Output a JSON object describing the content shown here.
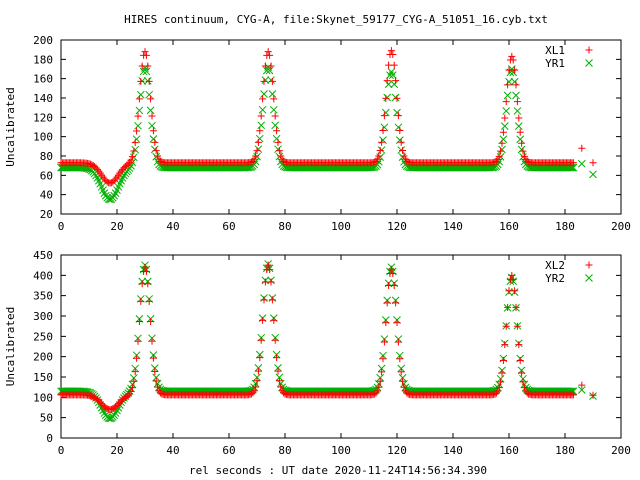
{
  "title": "HIRES continuum, CYG-A, file:Skynet_59177_CYG-A_51051_16.cyb.txt",
  "xlabel": "rel seconds : UT date 2020-11-24T14:56:34.390",
  "colors": {
    "red": "#ff0000",
    "green": "#00b000",
    "axis": "#000000"
  },
  "chart_data": [
    {
      "type": "scatter",
      "ylabel": "Uncalibrated",
      "xlim": [
        0,
        200
      ],
      "ylim": [
        20,
        200
      ],
      "xticks": [
        0,
        20,
        40,
        60,
        80,
        100,
        120,
        140,
        160,
        180,
        200
      ],
      "yticks": [
        20,
        40,
        60,
        80,
        100,
        120,
        140,
        160,
        180,
        200
      ],
      "legend_position": "top-right",
      "series": [
        {
          "name": "XL1",
          "marker": "plus",
          "color": "#ff0000",
          "baseline": 73,
          "dip": {
            "x": 17.5,
            "y": 52,
            "w": 3
          },
          "peaks": [
            [
              30,
              188
            ],
            [
              74,
              188
            ],
            [
              118,
              189
            ],
            [
              161,
              183
            ]
          ],
          "tail": [
            [
              186,
              88
            ],
            [
              190,
              73
            ]
          ]
        },
        {
          "name": "YR1",
          "marker": "cross",
          "color": "#00b000",
          "baseline": 68,
          "dip": {
            "x": 17.5,
            "y": 35,
            "w": 3
          },
          "peaks": [
            [
              30,
              171
            ],
            [
              74,
              172
            ],
            [
              118,
              167
            ],
            [
              161,
              170
            ]
          ],
          "tail": [
            [
              186,
              72
            ],
            [
              190,
              61
            ]
          ]
        }
      ]
    },
    {
      "type": "scatter",
      "ylabel": "Uncalibrated",
      "xlim": [
        0,
        200
      ],
      "ylim": [
        0,
        450
      ],
      "xticks": [
        0,
        20,
        40,
        60,
        80,
        100,
        120,
        140,
        160,
        180,
        200
      ],
      "yticks": [
        0,
        50,
        100,
        150,
        200,
        250,
        300,
        350,
        400,
        450
      ],
      "legend_position": "top-right",
      "series": [
        {
          "name": "XL2",
          "marker": "plus",
          "color": "#ff0000",
          "baseline": 106,
          "dip": {
            "x": 17.5,
            "y": 70,
            "w": 3
          },
          "peaks": [
            [
              30,
              420
            ],
            [
              74,
              425
            ],
            [
              118,
              415
            ],
            [
              161,
              400
            ]
          ],
          "tail": [
            [
              186,
              130
            ],
            [
              190,
              105
            ]
          ]
        },
        {
          "name": "YR2",
          "marker": "cross",
          "color": "#00b000",
          "baseline": 115,
          "dip": {
            "x": 17.5,
            "y": 48,
            "w": 3
          },
          "peaks": [
            [
              30,
              425
            ],
            [
              74,
              428
            ],
            [
              118,
              420
            ],
            [
              161,
              395
            ]
          ],
          "tail": [
            [
              186,
              118
            ],
            [
              190,
              103
            ]
          ]
        }
      ]
    }
  ]
}
